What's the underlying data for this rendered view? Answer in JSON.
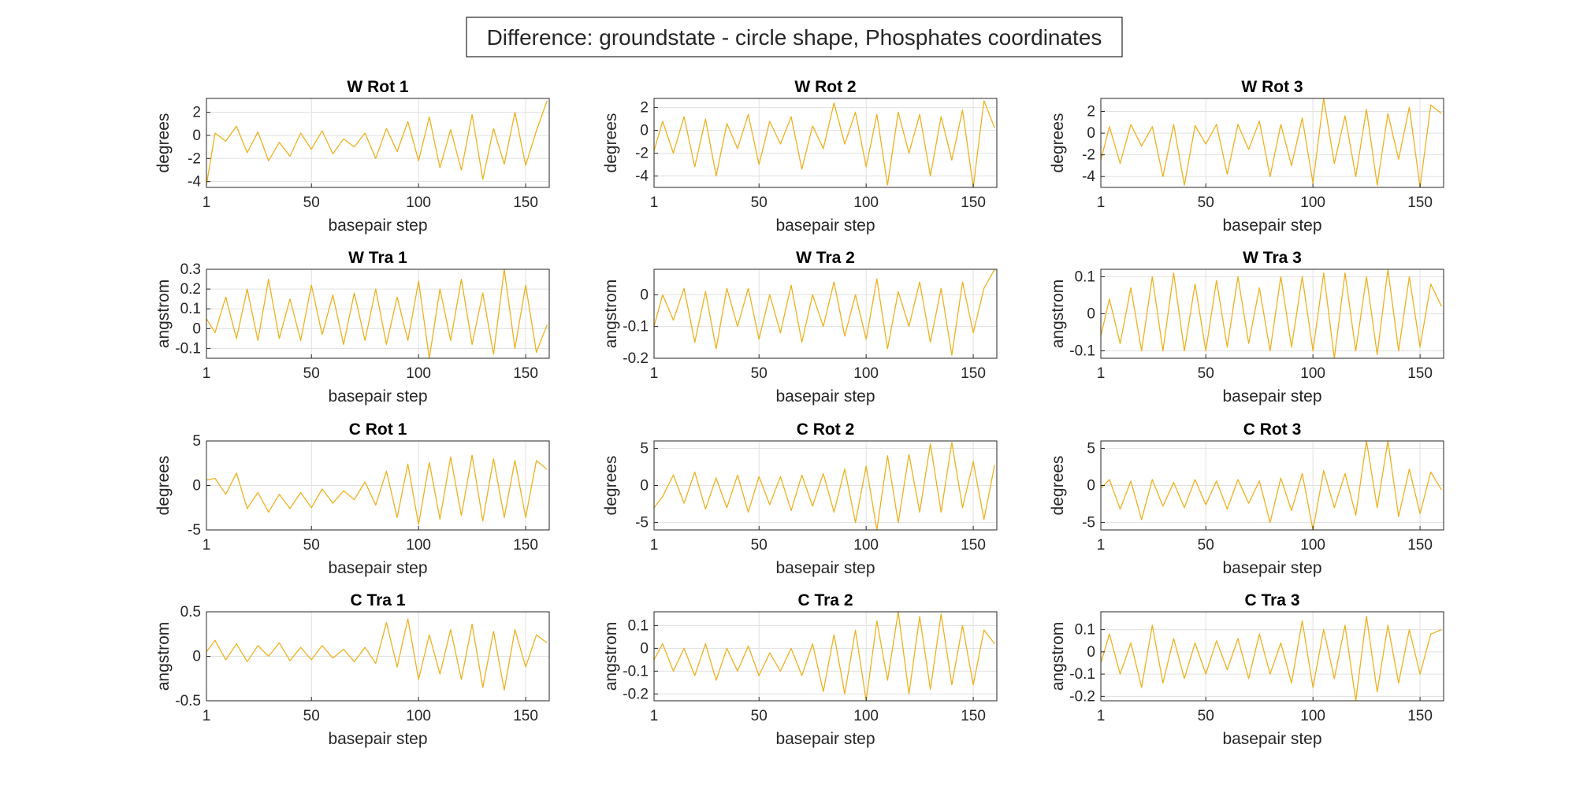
{
  "figure": {
    "suptitle": "Difference: groundstate - circle shape, Phosphates coordinates",
    "line_color": "#EDB120"
  },
  "chart_data": [
    {
      "type": "line",
      "title": "W Rot 1",
      "xlabel": "basepair step",
      "ylabel": "degrees",
      "xlim": [
        1,
        161
      ],
      "ylim": [
        -4.5,
        3.2
      ],
      "xticks": [
        1,
        50,
        100,
        150
      ],
      "yticks": [
        -4,
        -2,
        0,
        2
      ],
      "ytick_labels": [
        "-4",
        "-2",
        "0",
        "2"
      ],
      "grid": true,
      "x": [
        1,
        5,
        10,
        15,
        20,
        25,
        30,
        35,
        40,
        45,
        50,
        55,
        60,
        65,
        70,
        75,
        80,
        85,
        90,
        95,
        100,
        105,
        110,
        115,
        120,
        125,
        130,
        135,
        140,
        145,
        150,
        155,
        160
      ],
      "series": [
        {
          "values": [
            -4.3,
            0.2,
            -0.5,
            0.8,
            -1.5,
            0.3,
            -2.2,
            -0.6,
            -1.8,
            0.2,
            -1.2,
            0.4,
            -1.6,
            -0.3,
            -1.0,
            0.2,
            -2.0,
            0.6,
            -1.4,
            1.2,
            -2.2,
            1.6,
            -2.8,
            0.5,
            -3.0,
            1.8,
            -3.8,
            0.6,
            -2.5,
            2.0,
            -2.6,
            0.4,
            3.0
          ]
        }
      ]
    },
    {
      "type": "line",
      "title": "W Rot 2",
      "xlabel": "basepair step",
      "ylabel": "degrees",
      "xlim": [
        1,
        161
      ],
      "ylim": [
        -5,
        2.8
      ],
      "xticks": [
        1,
        50,
        100,
        150
      ],
      "yticks": [
        -4,
        -2,
        0,
        2
      ],
      "ytick_labels": [
        "-4",
        "-2",
        "0",
        "2"
      ],
      "grid": true,
      "x": [
        1,
        5,
        10,
        15,
        20,
        25,
        30,
        35,
        40,
        45,
        50,
        55,
        60,
        65,
        70,
        75,
        80,
        85,
        90,
        95,
        100,
        105,
        110,
        115,
        120,
        125,
        130,
        135,
        140,
        145,
        150,
        155,
        160
      ],
      "series": [
        {
          "values": [
            -1.8,
            0.8,
            -2.0,
            1.2,
            -3.2,
            1.0,
            -4.0,
            0.6,
            -1.6,
            1.4,
            -3.0,
            0.8,
            -1.2,
            1.2,
            -3.4,
            0.4,
            -1.6,
            2.4,
            -1.2,
            1.6,
            -3.2,
            1.4,
            -4.8,
            1.6,
            -2.0,
            1.4,
            -4.0,
            1.2,
            -2.6,
            1.8,
            -5.0,
            2.6,
            0.2
          ]
        }
      ]
    },
    {
      "type": "line",
      "title": "W Rot 3",
      "xlabel": "basepair step",
      "ylabel": "degrees",
      "xlim": [
        1,
        161
      ],
      "ylim": [
        -5,
        3.2
      ],
      "xticks": [
        1,
        50,
        100,
        150
      ],
      "yticks": [
        -4,
        -2,
        0,
        2
      ],
      "ytick_labels": [
        "-4",
        "-2",
        "0",
        "2"
      ],
      "grid": true,
      "x": [
        1,
        5,
        10,
        15,
        20,
        25,
        30,
        35,
        40,
        45,
        50,
        55,
        60,
        65,
        70,
        75,
        80,
        85,
        90,
        95,
        100,
        105,
        110,
        115,
        120,
        125,
        130,
        135,
        140,
        145,
        150,
        155,
        160
      ],
      "series": [
        {
          "values": [
            -2.5,
            0.6,
            -2.8,
            0.8,
            -1.2,
            0.6,
            -4.0,
            0.8,
            -4.8,
            0.7,
            -1.0,
            0.8,
            -3.8,
            0.8,
            -1.5,
            1.1,
            -4.0,
            0.8,
            -3.0,
            1.4,
            -4.6,
            3.2,
            -2.8,
            1.6,
            -4.0,
            2.2,
            -4.8,
            1.8,
            -2.4,
            2.4,
            -5.0,
            2.6,
            1.8
          ]
        }
      ]
    },
    {
      "type": "line",
      "title": "W Tra 1",
      "xlabel": "basepair step",
      "ylabel": "angstrom",
      "xlim": [
        1,
        161
      ],
      "ylim": [
        -0.15,
        0.3
      ],
      "xticks": [
        1,
        50,
        100,
        150
      ],
      "yticks": [
        -0.1,
        0,
        0.1,
        0.2,
        0.3
      ],
      "ytick_labels": [
        "-0.1",
        "0",
        "0.1",
        "0.2",
        "0.3"
      ],
      "grid": true,
      "x": [
        1,
        5,
        10,
        15,
        20,
        25,
        30,
        35,
        40,
        45,
        50,
        55,
        60,
        65,
        70,
        75,
        80,
        85,
        90,
        95,
        100,
        105,
        110,
        115,
        120,
        125,
        130,
        135,
        140,
        145,
        150,
        155,
        160
      ],
      "series": [
        {
          "values": [
            0.05,
            -0.02,
            0.16,
            -0.05,
            0.2,
            -0.06,
            0.25,
            -0.05,
            0.15,
            -0.06,
            0.22,
            -0.03,
            0.17,
            -0.08,
            0.18,
            -0.06,
            0.2,
            -0.08,
            0.16,
            -0.06,
            0.24,
            -0.15,
            0.2,
            -0.06,
            0.25,
            -0.08,
            0.18,
            -0.13,
            0.3,
            -0.1,
            0.22,
            -0.12,
            0.02
          ]
        }
      ]
    },
    {
      "type": "line",
      "title": "W Tra 2",
      "xlabel": "basepair step",
      "ylabel": "angstrom",
      "xlim": [
        1,
        161
      ],
      "ylim": [
        -0.2,
        0.08
      ],
      "xticks": [
        1,
        50,
        100,
        150
      ],
      "yticks": [
        -0.2,
        -0.1,
        0
      ],
      "ytick_labels": [
        "-0.2",
        "-0.1",
        "0"
      ],
      "grid": true,
      "x": [
        1,
        5,
        10,
        15,
        20,
        25,
        30,
        35,
        40,
        45,
        50,
        55,
        60,
        65,
        70,
        75,
        80,
        85,
        90,
        95,
        100,
        105,
        110,
        115,
        120,
        125,
        130,
        135,
        140,
        145,
        150,
        155,
        160
      ],
      "series": [
        {
          "values": [
            -0.1,
            0.0,
            -0.08,
            0.02,
            -0.15,
            0.01,
            -0.17,
            0.02,
            -0.1,
            0.02,
            -0.14,
            0.0,
            -0.12,
            0.03,
            -0.15,
            0.0,
            -0.1,
            0.04,
            -0.13,
            0.0,
            -0.14,
            0.05,
            -0.17,
            0.01,
            -0.1,
            0.04,
            -0.15,
            0.02,
            -0.19,
            0.04,
            -0.12,
            0.02,
            0.08
          ]
        }
      ]
    },
    {
      "type": "line",
      "title": "W Tra 3",
      "xlabel": "basepair step",
      "ylabel": "angstrom",
      "xlim": [
        1,
        161
      ],
      "ylim": [
        -0.12,
        0.12
      ],
      "xticks": [
        1,
        50,
        100,
        150
      ],
      "yticks": [
        -0.1,
        0,
        0.1
      ],
      "ytick_labels": [
        "-0.1",
        "0",
        "0.1"
      ],
      "grid": true,
      "x": [
        1,
        5,
        10,
        15,
        20,
        25,
        30,
        35,
        40,
        45,
        50,
        55,
        60,
        65,
        70,
        75,
        80,
        85,
        90,
        95,
        100,
        105,
        110,
        115,
        120,
        125,
        130,
        135,
        140,
        145,
        150,
        155,
        160
      ],
      "series": [
        {
          "values": [
            -0.06,
            0.04,
            -0.08,
            0.07,
            -0.1,
            0.1,
            -0.1,
            0.11,
            -0.1,
            0.08,
            -0.1,
            0.09,
            -0.09,
            0.1,
            -0.08,
            0.07,
            -0.1,
            0.1,
            -0.09,
            0.1,
            -0.1,
            0.11,
            -0.12,
            0.11,
            -0.1,
            0.1,
            -0.11,
            0.12,
            -0.1,
            0.1,
            -0.09,
            0.08,
            0.02
          ]
        }
      ]
    },
    {
      "type": "line",
      "title": "C Rot 1",
      "xlabel": "basepair step",
      "ylabel": "degrees",
      "xlim": [
        1,
        161
      ],
      "ylim": [
        -5,
        5
      ],
      "xticks": [
        1,
        50,
        100,
        150
      ],
      "yticks": [
        -5,
        0,
        5
      ],
      "ytick_labels": [
        "-5",
        "0",
        "5"
      ],
      "grid": true,
      "x": [
        1,
        5,
        10,
        15,
        20,
        25,
        30,
        35,
        40,
        45,
        50,
        55,
        60,
        65,
        70,
        75,
        80,
        85,
        90,
        95,
        100,
        105,
        110,
        115,
        120,
        125,
        130,
        135,
        140,
        145,
        150,
        155,
        160
      ],
      "series": [
        {
          "values": [
            0.6,
            0.8,
            -1.0,
            1.4,
            -2.6,
            -0.8,
            -3.0,
            -1.0,
            -2.6,
            -0.8,
            -2.5,
            -0.4,
            -2.0,
            -0.6,
            -1.6,
            0.4,
            -2.2,
            1.6,
            -3.6,
            2.4,
            -4.4,
            2.6,
            -3.8,
            3.2,
            -3.4,
            3.4,
            -4.0,
            3.0,
            -3.6,
            2.8,
            -3.6,
            2.8,
            1.8
          ]
        }
      ]
    },
    {
      "type": "line",
      "title": "C Rot 2",
      "xlabel": "basepair step",
      "ylabel": "degrees",
      "xlim": [
        1,
        161
      ],
      "ylim": [
        -6,
        6
      ],
      "xticks": [
        1,
        50,
        100,
        150
      ],
      "yticks": [
        -5,
        0,
        5
      ],
      "ytick_labels": [
        "-5",
        "0",
        "5"
      ],
      "grid": true,
      "x": [
        1,
        5,
        10,
        15,
        20,
        25,
        30,
        35,
        40,
        45,
        50,
        55,
        60,
        65,
        70,
        75,
        80,
        85,
        90,
        95,
        100,
        105,
        110,
        115,
        120,
        125,
        130,
        135,
        140,
        145,
        150,
        155,
        160
      ],
      "series": [
        {
          "values": [
            -3.0,
            -1.5,
            1.4,
            -2.4,
            1.8,
            -3.2,
            1.0,
            -3.0,
            1.4,
            -3.6,
            1.2,
            -2.6,
            1.2,
            -3.4,
            1.4,
            -2.8,
            1.6,
            -3.6,
            2.2,
            -5.0,
            2.6,
            -6.0,
            4.0,
            -5.0,
            4.2,
            -3.6,
            5.6,
            -3.6,
            5.8,
            -3.0,
            3.2,
            -4.6,
            2.8
          ]
        }
      ]
    },
    {
      "type": "line",
      "title": "C Rot 3",
      "xlabel": "basepair step",
      "ylabel": "degrees",
      "xlim": [
        1,
        161
      ],
      "ylim": [
        -6,
        6
      ],
      "xticks": [
        1,
        50,
        100,
        150
      ],
      "yticks": [
        -5,
        0,
        5
      ],
      "ytick_labels": [
        "-5",
        "0",
        "5"
      ],
      "grid": true,
      "x": [
        1,
        5,
        10,
        15,
        20,
        25,
        30,
        35,
        40,
        45,
        50,
        55,
        60,
        65,
        70,
        75,
        80,
        85,
        90,
        95,
        100,
        105,
        110,
        115,
        120,
        125,
        130,
        135,
        140,
        145,
        150,
        155,
        160
      ],
      "series": [
        {
          "values": [
            -0.4,
            0.8,
            -3.2,
            0.6,
            -4.6,
            0.8,
            -2.8,
            0.4,
            -3.0,
            0.8,
            -2.6,
            0.6,
            -3.2,
            0.8,
            -2.4,
            0.6,
            -5.0,
            1.0,
            -3.4,
            1.6,
            -6.0,
            2.0,
            -3.0,
            1.6,
            -4.0,
            6.0,
            -3.0,
            6.0,
            -4.2,
            2.2,
            -3.8,
            1.8,
            -0.6
          ]
        }
      ]
    },
    {
      "type": "line",
      "title": "C Tra 1",
      "xlabel": "basepair step",
      "ylabel": "angstrom",
      "xlim": [
        1,
        161
      ],
      "ylim": [
        -0.5,
        0.5
      ],
      "xticks": [
        1,
        50,
        100,
        150
      ],
      "yticks": [
        -0.5,
        0,
        0.5
      ],
      "ytick_labels": [
        "-0.5",
        "0",
        "0.5"
      ],
      "grid": true,
      "x": [
        1,
        5,
        10,
        15,
        20,
        25,
        30,
        35,
        40,
        45,
        50,
        55,
        60,
        65,
        70,
        75,
        80,
        85,
        90,
        95,
        100,
        105,
        110,
        115,
        120,
        125,
        130,
        135,
        140,
        145,
        150,
        155,
        160
      ],
      "series": [
        {
          "values": [
            0.05,
            0.18,
            -0.04,
            0.14,
            -0.06,
            0.12,
            0.0,
            0.15,
            -0.05,
            0.1,
            -0.04,
            0.12,
            -0.02,
            0.08,
            -0.06,
            0.1,
            -0.08,
            0.38,
            -0.12,
            0.42,
            -0.26,
            0.24,
            -0.2,
            0.3,
            -0.26,
            0.36,
            -0.35,
            0.28,
            -0.38,
            0.3,
            -0.12,
            0.24,
            0.15
          ]
        }
      ]
    },
    {
      "type": "line",
      "title": "C Tra 2",
      "xlabel": "basepair step",
      "ylabel": "angstrom",
      "xlim": [
        1,
        161
      ],
      "ylim": [
        -0.23,
        0.16
      ],
      "xticks": [
        1,
        50,
        100,
        150
      ],
      "yticks": [
        -0.2,
        -0.1,
        0,
        0.1
      ],
      "ytick_labels": [
        "-0.2",
        "-0.1",
        "0",
        "0.1"
      ],
      "grid": true,
      "x": [
        1,
        5,
        10,
        15,
        20,
        25,
        30,
        35,
        40,
        45,
        50,
        55,
        60,
        65,
        70,
        75,
        80,
        85,
        90,
        95,
        100,
        105,
        110,
        115,
        120,
        125,
        130,
        135,
        140,
        145,
        150,
        155,
        160
      ],
      "series": [
        {
          "values": [
            -0.05,
            0.02,
            -0.1,
            0.0,
            -0.12,
            0.02,
            -0.14,
            0.0,
            -0.1,
            0.01,
            -0.12,
            -0.02,
            -0.1,
            0.0,
            -0.12,
            0.02,
            -0.19,
            0.06,
            -0.2,
            0.08,
            -0.23,
            0.12,
            -0.14,
            0.16,
            -0.2,
            0.14,
            -0.18,
            0.15,
            -0.16,
            0.1,
            -0.16,
            0.08,
            0.02
          ]
        }
      ]
    },
    {
      "type": "line",
      "title": "C Tra 3",
      "xlabel": "basepair step",
      "ylabel": "angstrom",
      "xlim": [
        1,
        161
      ],
      "ylim": [
        -0.22,
        0.18
      ],
      "xticks": [
        1,
        50,
        100,
        150
      ],
      "yticks": [
        -0.2,
        -0.1,
        0,
        0.1
      ],
      "ytick_labels": [
        "-0.2",
        "-0.1",
        "0",
        "0.1"
      ],
      "grid": true,
      "x": [
        1,
        5,
        10,
        15,
        20,
        25,
        30,
        35,
        40,
        45,
        50,
        55,
        60,
        65,
        70,
        75,
        80,
        85,
        90,
        95,
        100,
        105,
        110,
        115,
        120,
        125,
        130,
        135,
        140,
        145,
        150,
        155,
        160
      ],
      "series": [
        {
          "values": [
            -0.05,
            0.08,
            -0.1,
            0.04,
            -0.16,
            0.12,
            -0.14,
            0.06,
            -0.12,
            0.04,
            -0.1,
            0.05,
            -0.08,
            0.06,
            -0.12,
            0.08,
            -0.1,
            0.04,
            -0.14,
            0.14,
            -0.16,
            0.1,
            -0.12,
            0.12,
            -0.22,
            0.16,
            -0.18,
            0.12,
            -0.14,
            0.1,
            -0.1,
            0.08,
            0.1
          ]
        }
      ]
    }
  ]
}
